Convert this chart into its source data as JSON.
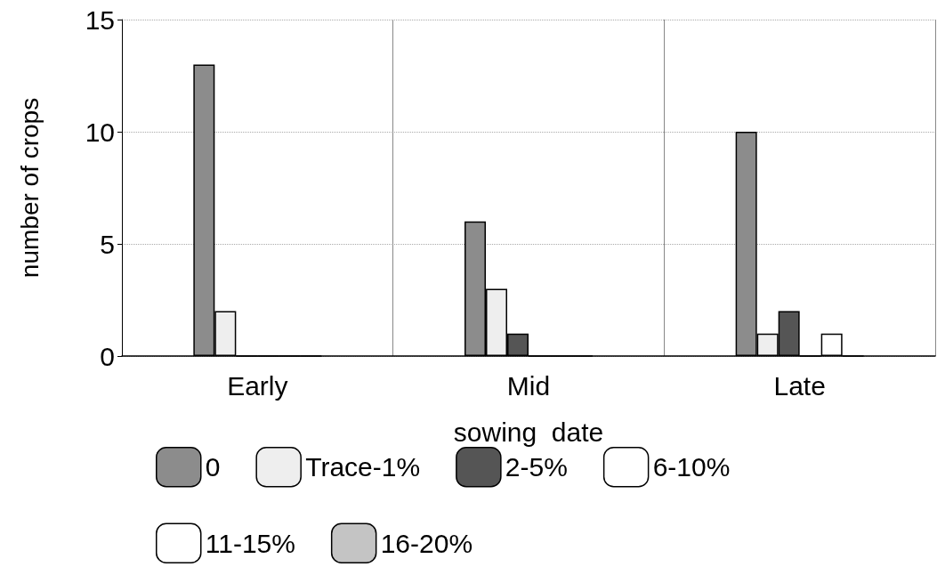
{
  "chart_data": {
    "type": "bar",
    "xlabel": "sowing  date",
    "ylabel": "number of crops",
    "categories": [
      "Early",
      "Mid",
      "Late"
    ],
    "series": [
      {
        "name": "0",
        "color": "#8c8c8c",
        "values": [
          13,
          6,
          10
        ]
      },
      {
        "name": "Trace-1%",
        "color": "#eeeeee",
        "values": [
          2,
          3,
          1
        ]
      },
      {
        "name": "2-5%",
        "color": "#555555",
        "values": [
          0,
          1,
          2
        ]
      },
      {
        "name": "6-10%",
        "color": "#ffffff",
        "values": [
          0,
          0,
          0
        ]
      },
      {
        "name": "11-15%",
        "color": "#ffffff",
        "values": [
          0,
          0,
          1
        ]
      },
      {
        "name": "16-20%",
        "color": "#c4c4c4",
        "values": [
          0,
          0,
          0
        ]
      }
    ],
    "ylim": [
      0,
      15
    ],
    "yticks": [
      0,
      5,
      10,
      15
    ],
    "grid": true,
    "legend": "bottom"
  }
}
